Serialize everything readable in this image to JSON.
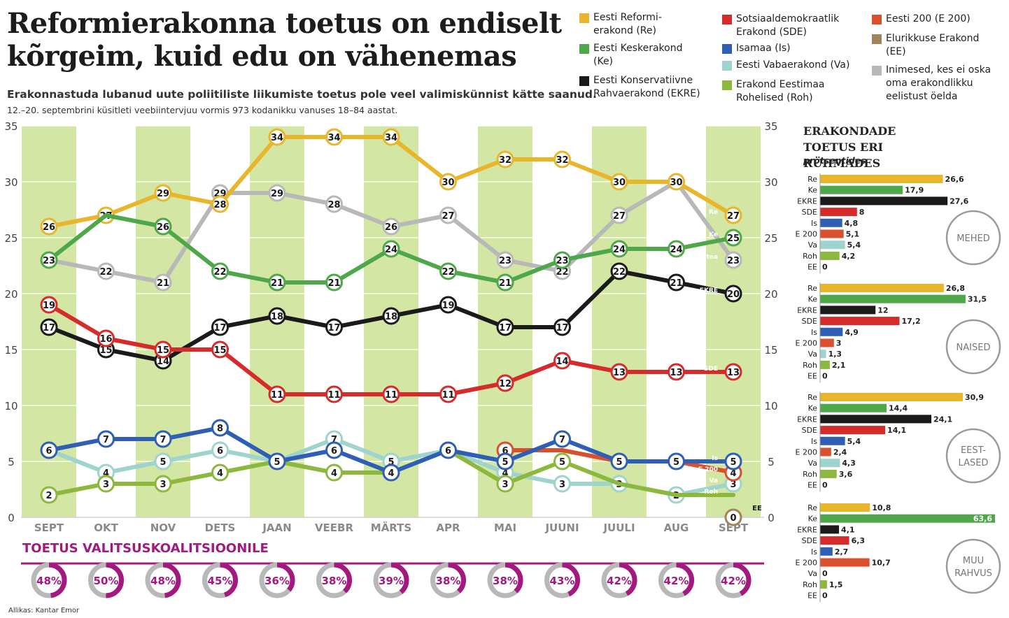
{
  "headline": "Reformierakonna toetus on endiselt kõrgeim, kuid edu on vähenemas",
  "subtitle": "Erakonnastuda lubanud uute poliitiliste liikumiste toetus pole veel valimiskünnist kätte saanud.",
  "methodology": "12.–20. septembrini küsitleti veebiintervjuu vormis 973 kodanikku vanuses 18–84 aastat.",
  "source": "Allikas: Kantar Emor",
  "legend": [
    {
      "label": "Eesti Reformi-\nerakond (Re)",
      "color": "#e9b52a"
    },
    {
      "label": "Eesti Keskerakond\n(Ke)",
      "color": "#4ea84a"
    },
    {
      "label": "Eesti Konservatiivne\nRahvaerakond (EKRE)",
      "color": "#1a1a1a"
    },
    {
      "label": "Sotsiaaldemokraatlik\nErakond (SDE)",
      "color": "#d62b2b"
    },
    {
      "label": "Isamaa (Is)",
      "color": "#2f5fb5"
    },
    {
      "label": "Eesti Vabaerakond (Va)",
      "color": "#9fd3cd"
    },
    {
      "label": "Erakond Eestimaa\nRohelised (Roh)",
      "color": "#8db83e"
    },
    {
      "label": "Eesti 200 (E 200)",
      "color": "#d9502e"
    },
    {
      "label": "Elurikkuse Erakond\n(EE)",
      "color": "#a0835b"
    },
    {
      "label": "Inimesed, kes ei oska\noma erakondlikku\neelistust öelda",
      "color": "#b8b8b8"
    }
  ],
  "chart_data": [
    {
      "type": "line",
      "title": "Erakondade toetus",
      "categories": [
        "SEPT",
        "OKT",
        "NOV",
        "DETS",
        "JAAN",
        "VEEBR",
        "MÄRTS",
        "APR",
        "MAI",
        "JUUNI",
        "JUULI",
        "AUG",
        "SEPT"
      ],
      "yticks": [
        "0",
        "5",
        "10",
        "15",
        "20",
        "25",
        "30",
        "35"
      ],
      "ylim": [
        0,
        35
      ],
      "series": [
        {
          "name": "Ei oska öelda",
          "short": "ei tea",
          "color": "#b8b8b8",
          "values": [
            23,
            22,
            21,
            29,
            29,
            28,
            26,
            27,
            23,
            22,
            27,
            30,
            23
          ],
          "labels": [
            "",
            "22",
            "21",
            "29",
            "29",
            "28",
            "26",
            "27",
            "23",
            "22",
            "27",
            "",
            "23"
          ]
        },
        {
          "name": "Re",
          "short": "Re",
          "color": "#e9b52a",
          "values": [
            26,
            27,
            29,
            28,
            34,
            34,
            34,
            30,
            32,
            32,
            30,
            30,
            27
          ],
          "labels": [
            "26",
            "27",
            "29",
            "28",
            "34",
            "34",
            "34",
            "30",
            "32",
            "32",
            "30",
            "30",
            "27"
          ]
        },
        {
          "name": "Ke",
          "short": "Ke",
          "color": "#4ea84a",
          "values": [
            23,
            27,
            26,
            22,
            21,
            21,
            24,
            22,
            21,
            23,
            24,
            24,
            25
          ],
          "labels": [
            "23",
            "",
            "26",
            "22",
            "21",
            "21",
            "24",
            "22",
            "21",
            "23",
            "24",
            "24",
            "25"
          ]
        },
        {
          "name": "EKRE",
          "short": "EKRE",
          "color": "#1a1a1a",
          "values": [
            17,
            15,
            14,
            17,
            18,
            17,
            18,
            19,
            17,
            17,
            22,
            21,
            20
          ],
          "labels": [
            "17",
            "15",
            "14",
            "17",
            "18",
            "17",
            "18",
            "19",
            "17",
            "17",
            "22",
            "21",
            "20"
          ]
        },
        {
          "name": "SDE",
          "short": "SDE",
          "color": "#d62b2b",
          "values": [
            19,
            16,
            15,
            15,
            11,
            11,
            11,
            11,
            12,
            14,
            13,
            13,
            13
          ],
          "labels": [
            "19",
            "16",
            "15",
            "15",
            "11",
            "11",
            "11",
            "11",
            "12",
            "14",
            "13",
            "13",
            "13"
          ]
        },
        {
          "name": "Va",
          "short": "Va",
          "color": "#9fd3cd",
          "values": [
            6,
            4,
            5,
            6,
            5,
            7,
            5,
            6,
            4,
            3,
            3,
            2,
            3
          ],
          "labels": [
            "",
            "4",
            "5",
            "6",
            "",
            "7",
            "5",
            "",
            "4",
            "3",
            "3",
            "2",
            "3"
          ]
        },
        {
          "name": "Roh",
          "short": "Roh",
          "color": "#8db83e",
          "values": [
            2,
            3,
            3,
            4,
            5,
            4,
            4,
            6,
            3,
            5,
            3,
            2,
            2
          ],
          "labels": [
            "2",
            "3",
            "3",
            "4",
            "",
            "4",
            "",
            "",
            "3",
            "5",
            "",
            "",
            ""
          ]
        },
        {
          "name": "E 200",
          "short": "E 200",
          "color": "#d9502e",
          "values": [
            null,
            null,
            null,
            null,
            null,
            null,
            null,
            null,
            6,
            6,
            5,
            5,
            4
          ],
          "labels": [
            "",
            "",
            "",
            "",
            "",
            "",
            "",
            "",
            "6",
            "",
            "",
            "",
            "4"
          ]
        },
        {
          "name": "Is",
          "short": "Is",
          "color": "#2f5fb5",
          "values": [
            6,
            7,
            7,
            8,
            5,
            6,
            4,
            6,
            5,
            7,
            5,
            5,
            5
          ],
          "labels": [
            "6",
            "7",
            "7",
            "8",
            "5",
            "6",
            "4",
            "6",
            "5",
            "7",
            "5",
            "5",
            "5"
          ]
        },
        {
          "name": "EE",
          "short": "EE",
          "color": "#a0835b",
          "values": [
            null,
            null,
            null,
            null,
            null,
            null,
            null,
            null,
            null,
            null,
            null,
            null,
            0
          ],
          "labels": [
            "",
            "",
            "",
            "",
            "",
            "",
            "",
            "",
            "",
            "",
            "",
            "",
            "0"
          ]
        }
      ]
    },
    {
      "type": "donut",
      "title": "TOETUS VALITSUSKOALITSIOONILE",
      "categories": [
        "SEPT",
        "OKT",
        "NOV",
        "DETS",
        "JAAN",
        "VEEBR",
        "MÄRTS",
        "APR",
        "MAI",
        "JUUNI",
        "JUULI",
        "AUG",
        "SEPT"
      ],
      "values": [
        48,
        50,
        48,
        45,
        36,
        38,
        39,
        38,
        38,
        43,
        42,
        42,
        42
      ],
      "labels": [
        "48%",
        "50%",
        "48%",
        "45%",
        "36%",
        "38%",
        "39%",
        "38%",
        "38%",
        "43%",
        "42%",
        "42%",
        "42%"
      ],
      "color": "#a3197f"
    },
    {
      "type": "bar",
      "title": "ERAKONDADE TOETUS ERI RÜHMADES",
      "unit": "protsentides",
      "categories": [
        "Re",
        "Ke",
        "EKRE",
        "SDE",
        "Is",
        "E 200",
        "Va",
        "Roh",
        "EE"
      ],
      "colors": [
        "#e9b52a",
        "#4ea84a",
        "#1a1a1a",
        "#d62b2b",
        "#2f5fb5",
        "#d9502e",
        "#9fd3cd",
        "#8db83e",
        "#a0835b"
      ],
      "groups": [
        {
          "name": "MEHED",
          "values": [
            26.6,
            17.9,
            27.6,
            8,
            4.8,
            5.1,
            5.4,
            4.2,
            0
          ],
          "labels": [
            "26,6",
            "17,9",
            "27,6",
            "8",
            "4,8",
            "5,1",
            "5,4",
            "4,2",
            "0"
          ]
        },
        {
          "name": "NAISED",
          "values": [
            26.8,
            31.5,
            12,
            17.2,
            4.9,
            3,
            1.3,
            2.1,
            0
          ],
          "labels": [
            "26,8",
            "31,5",
            "12",
            "17,2",
            "4,9",
            "3",
            "1,3",
            "2,1",
            "0"
          ]
        },
        {
          "name": "EEST-\nLASED",
          "values": [
            30.9,
            14.4,
            24.1,
            14.1,
            5.4,
            2.4,
            4.3,
            3.6,
            0
          ],
          "labels": [
            "30,9",
            "14,4",
            "24,1",
            "14,1",
            "5,4",
            "2,4",
            "4,3",
            "3,6",
            "0"
          ]
        },
        {
          "name": "MUU\nRAHVUS",
          "values": [
            10.8,
            63.6,
            4.1,
            6.3,
            2.7,
            10.7,
            0,
            1.5,
            0
          ],
          "labels": [
            "10,8",
            "63,6",
            "4,1",
            "6,3",
            "2,7",
            "10,7",
            "0",
            "1,5",
            "0"
          ]
        }
      ]
    }
  ]
}
